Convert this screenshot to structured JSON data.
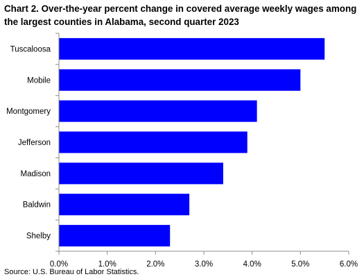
{
  "chart_data": {
    "type": "bar",
    "orientation": "horizontal",
    "title": "Chart 2. Over-the-year percent change in covered average weekly wages among the largest counties in Alabama, second quarter 2023",
    "categories": [
      "Tuscaloosa",
      "Mobile",
      "Montgomery",
      "Jefferson",
      "Madison",
      "Baldwin",
      "Shelby"
    ],
    "values": [
      5.5,
      5.0,
      4.1,
      3.9,
      3.4,
      2.7,
      2.3
    ],
    "xlim": [
      0,
      6
    ],
    "xticks": [
      "0.0%",
      "1.0%",
      "2.0%",
      "3.0%",
      "4.0%",
      "5.0%",
      "6.0%"
    ],
    "grid": false,
    "bar_color": "#0000ff",
    "source": "Source: U.S. Bureau of Labor Statistics."
  }
}
